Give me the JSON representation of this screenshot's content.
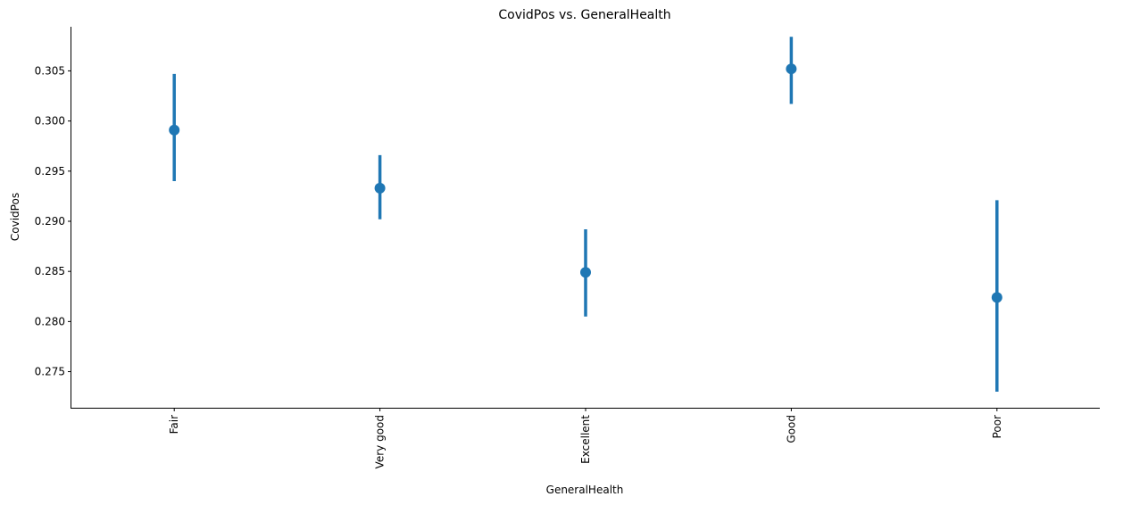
{
  "chart_data": {
    "type": "pointplot",
    "title": "CovidPos vs. GeneralHealth",
    "xlabel": "GeneralHealth",
    "ylabel": "CovidPos",
    "categories": [
      "Fair",
      "Very good",
      "Excellent",
      "Good",
      "Poor"
    ],
    "series": [
      {
        "values": [
          0.2991,
          0.2933,
          0.2849,
          0.3052,
          0.2824
        ],
        "ci_low": [
          0.294,
          0.2902,
          0.2805,
          0.3017,
          0.273
        ],
        "ci_high": [
          0.3047,
          0.2966,
          0.2892,
          0.3084,
          0.2921
        ]
      }
    ],
    "ylim": [
      0.2714,
      0.3094
    ],
    "yticks": [
      0.275,
      0.28,
      0.285,
      0.29,
      0.295,
      0.3,
      0.305
    ],
    "ytick_labels": [
      "0.275",
      "0.280",
      "0.285",
      "0.290",
      "0.295",
      "0.300",
      "0.305"
    ],
    "grid": false,
    "color": "#1f77b4",
    "xtick_rotation": 90
  }
}
